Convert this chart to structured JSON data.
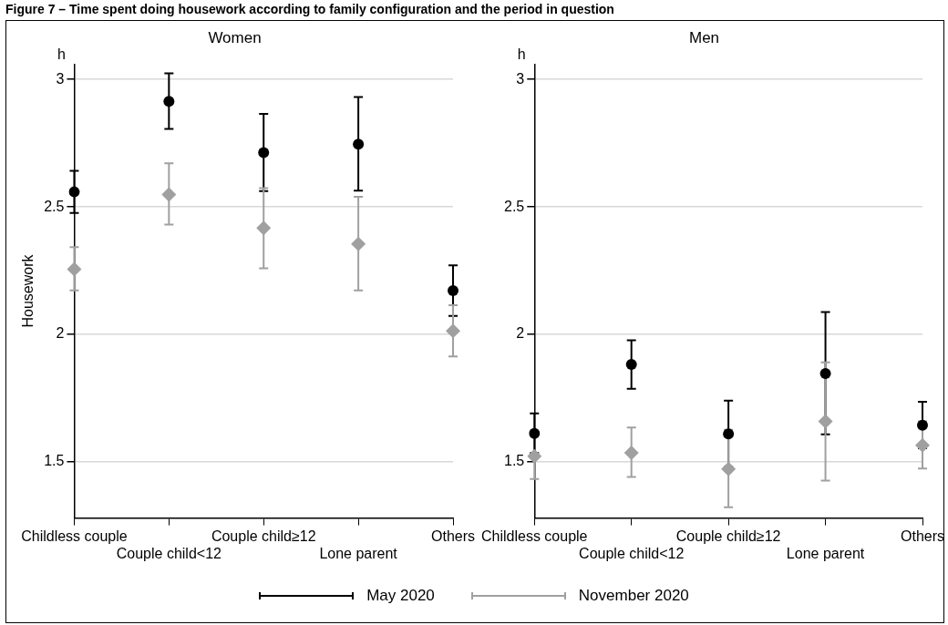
{
  "chart_data": [
    {
      "type": "scatter",
      "title": "Women",
      "ylabel": "Housework",
      "annotations": [
        "Figure 7 – Time spent doing housework according to family configuration and the period in question",
        "h"
      ],
      "categories": [
        "Childless couple",
        "Couple child<12",
        "Couple child≥12",
        "Lone parent",
        "Others"
      ],
      "series": [
        {
          "name": "May 2020",
          "color": "#000000",
          "marker": "circle",
          "values": [
            2.559,
            2.914,
            2.713,
            2.746,
            2.172
          ],
          "errors": [
            [
              2.476,
              2.642
            ],
            [
              2.806,
              3.024
            ],
            [
              2.562,
              2.865
            ],
            [
              2.564,
              2.931
            ],
            [
              2.073,
              2.271
            ]
          ]
        },
        {
          "name": "November 2020",
          "color": "#a0a0a0",
          "marker": "diamond",
          "values": [
            2.256,
            2.549,
            2.417,
            2.355,
            2.014
          ],
          "errors": [
            [
              2.173,
              2.342
            ],
            [
              2.431,
              2.671
            ],
            [
              2.259,
              2.574
            ],
            [
              2.173,
              2.54
            ],
            [
              1.914,
              2.115
            ]
          ]
        }
      ],
      "ylim": [
        1.28,
        3.06
      ],
      "yticks": [
        1.5,
        2,
        2.5,
        3
      ],
      "grid": "y",
      "legend": "bottom"
    },
    {
      "type": "scatter",
      "title": "Men",
      "annotations": [
        "h"
      ],
      "categories": [
        "Childless couple",
        "Couple child<12",
        "Couple child≥12",
        "Lone parent",
        "Others"
      ],
      "series": [
        {
          "color": "#000000",
          "marker": "circle",
          "values": [
            1.612,
            1.882,
            1.61,
            1.847,
            1.644
          ],
          "errors": [
            [
              1.535,
              1.69
            ],
            [
              1.787,
              1.977
            ],
            [
              1.48,
              1.74
            ],
            [
              1.608,
              2.088
            ],
            [
              1.554,
              1.736
            ]
          ]
        },
        {
          "color": "#a0a0a0",
          "marker": "diamond",
          "values": [
            1.522,
            1.536,
            1.472,
            1.659,
            1.565
          ],
          "errors": [
            [
              1.433,
              1.522
            ],
            [
              1.441,
              1.635
            ],
            [
              1.322,
              1.626
            ],
            [
              1.427,
              1.89
            ],
            [
              1.474,
              1.659
            ]
          ]
        }
      ],
      "ylim": [
        1.28,
        3.06
      ],
      "yticks": [
        1.5,
        2,
        2.5,
        3
      ],
      "grid": "y"
    }
  ]
}
